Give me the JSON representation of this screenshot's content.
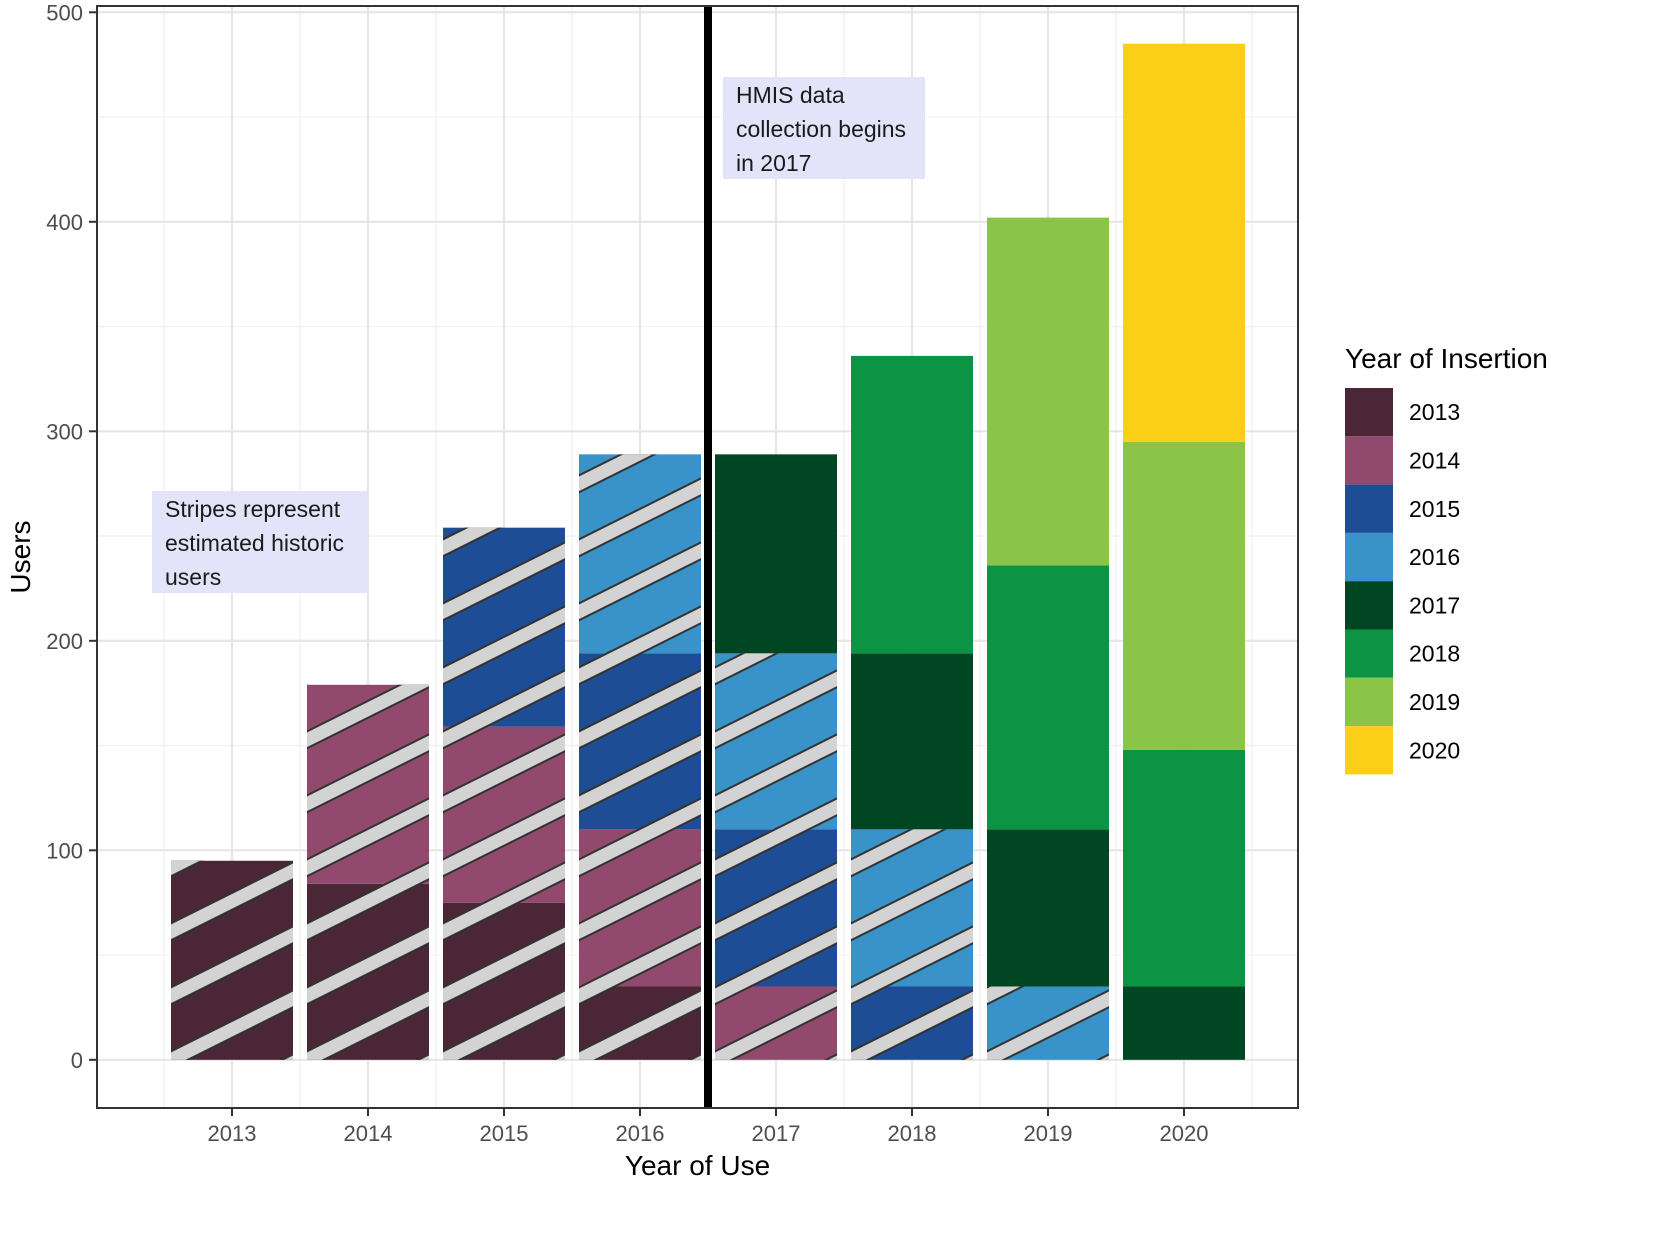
{
  "chart_data": {
    "type": "bar",
    "stacked": true,
    "xlabel": "Year of Use",
    "ylabel": "Users",
    "ylim": [
      -23,
      503
    ],
    "yticks": [
      0,
      100,
      200,
      300,
      400,
      500
    ],
    "grid": true,
    "legend_title": "Year of Insertion",
    "legend_position": "right",
    "categories": [
      "2013",
      "2014",
      "2015",
      "2016",
      "2017",
      "2018",
      "2019",
      "2020"
    ],
    "series": [
      {
        "name": "2013",
        "color": "#4a2636",
        "values": [
          95,
          84,
          75,
          35,
          0,
          0,
          0,
          0
        ],
        "striped": [
          true,
          true,
          true,
          true,
          false,
          false,
          false,
          false
        ]
      },
      {
        "name": "2014",
        "color": "#914a6e",
        "values": [
          0,
          95,
          84,
          75,
          35,
          0,
          0,
          0
        ],
        "striped": [
          false,
          true,
          true,
          true,
          true,
          false,
          false,
          false
        ]
      },
      {
        "name": "2015",
        "color": "#1e4d96",
        "values": [
          0,
          0,
          95,
          84,
          75,
          35,
          0,
          0
        ],
        "striped": [
          false,
          false,
          true,
          true,
          true,
          true,
          false,
          false
        ]
      },
      {
        "name": "2016",
        "color": "#3a93c8",
        "values": [
          0,
          0,
          0,
          95,
          84,
          75,
          35,
          0
        ],
        "striped": [
          false,
          false,
          false,
          true,
          true,
          true,
          true,
          false
        ]
      },
      {
        "name": "2017",
        "color": "#004623",
        "values": [
          0,
          0,
          0,
          0,
          95,
          84,
          75,
          35
        ],
        "striped": [
          false,
          false,
          false,
          false,
          false,
          false,
          false,
          false
        ]
      },
      {
        "name": "2018",
        "color": "#0c9444",
        "values": [
          0,
          0,
          0,
          0,
          0,
          142,
          126,
          113
        ],
        "striped": [
          false,
          false,
          false,
          false,
          false,
          false,
          false,
          false
        ]
      },
      {
        "name": "2019",
        "color": "#8bc547",
        "values": [
          0,
          0,
          0,
          0,
          0,
          0,
          166,
          147
        ],
        "striped": [
          false,
          false,
          false,
          false,
          false,
          false,
          false,
          false
        ]
      },
      {
        "name": "2020",
        "color": "#fbcf18",
        "values": [
          0,
          0,
          0,
          0,
          0,
          0,
          0,
          190
        ],
        "striped": [
          false,
          false,
          false,
          false,
          false,
          false,
          false,
          false
        ]
      }
    ],
    "vline": {
      "between": [
        "2016",
        "2017"
      ]
    },
    "annotations": [
      {
        "lines": [
          "HMIS data",
          "collection begins",
          "in 2017"
        ],
        "fill": "#e3e3fa"
      },
      {
        "lines": [
          "Stripes represent",
          "estimated historic",
          "users"
        ],
        "fill": "#e3e3fa"
      }
    ]
  }
}
